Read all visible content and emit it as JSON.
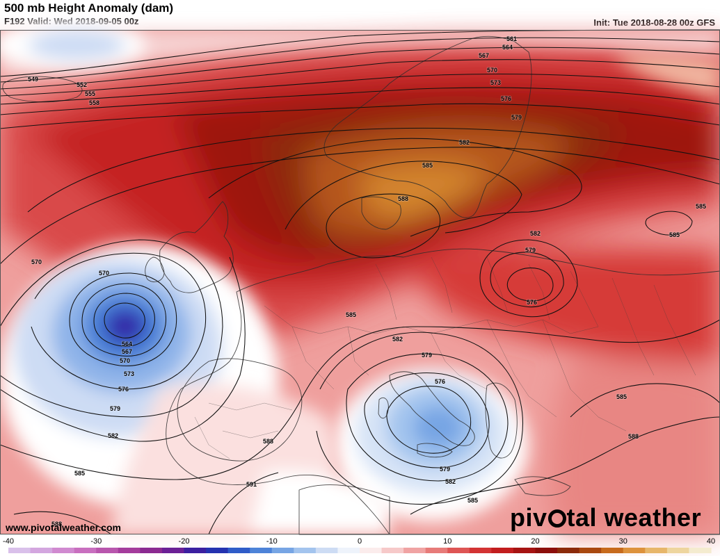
{
  "header": {
    "title": "500 mb Height Anomaly (dam)",
    "valid": "F192 Valid: Wed 2018-09-05 00z",
    "init": "Init: Tue 2018-08-28 00z GFS"
  },
  "footer": {
    "website": "www.pivotalweather.com",
    "brand_part1": "piv",
    "brand_part2": "tal weather"
  },
  "contour_labels": [
    {
      "text": "549"
    },
    {
      "text": "552"
    },
    {
      "text": "555"
    },
    {
      "text": "558"
    },
    {
      "text": "561"
    },
    {
      "text": "564"
    },
    {
      "text": "567"
    },
    {
      "text": "570"
    },
    {
      "text": "573"
    },
    {
      "text": "576"
    },
    {
      "text": "579"
    },
    {
      "text": "582"
    },
    {
      "text": "585"
    },
    {
      "text": "588"
    },
    {
      "text": "570"
    },
    {
      "text": "570"
    },
    {
      "text": "564"
    },
    {
      "text": "567"
    },
    {
      "text": "570"
    },
    {
      "text": "573"
    },
    {
      "text": "576"
    },
    {
      "text": "579"
    },
    {
      "text": "582"
    },
    {
      "text": "585"
    },
    {
      "text": "588"
    },
    {
      "text": "591"
    },
    {
      "text": "585"
    },
    {
      "text": "582"
    },
    {
      "text": "582"
    },
    {
      "text": "579"
    },
    {
      "text": "576"
    },
    {
      "text": "579"
    },
    {
      "text": "576"
    },
    {
      "text": "579"
    },
    {
      "text": "582"
    },
    {
      "text": "585"
    },
    {
      "text": "588"
    },
    {
      "text": "585"
    },
    {
      "text": "585"
    },
    {
      "text": "588"
    },
    {
      "text": "585"
    }
  ],
  "colorbar": {
    "labels": [
      "-40",
      "-30",
      "-20",
      "-10",
      "0",
      "10",
      "20",
      "30",
      "40"
    ],
    "min": -40,
    "max": 40,
    "step": 2.5,
    "colors": [
      "#d9c0ea",
      "#d3a6df",
      "#d08ad0",
      "#c86fbf",
      "#b856ad",
      "#a43c9c",
      "#8b2a91",
      "#6b2096",
      "#3b1fa0",
      "#2432b0",
      "#2f5cc8",
      "#4d83d8",
      "#77a5e4",
      "#a3c4ee",
      "#cddcf4",
      "#eef3fb",
      "#fbecec",
      "#f6c9c9",
      "#f0a3a3",
      "#e77b79",
      "#de5554",
      "#d33333",
      "#c21d1e",
      "#a61312",
      "#8c0e0b",
      "#8b2a0a",
      "#a9480f",
      "#c76a1c",
      "#dd923c",
      "#e7b66a",
      "#eed59e",
      "#f4ebcf"
    ]
  }
}
